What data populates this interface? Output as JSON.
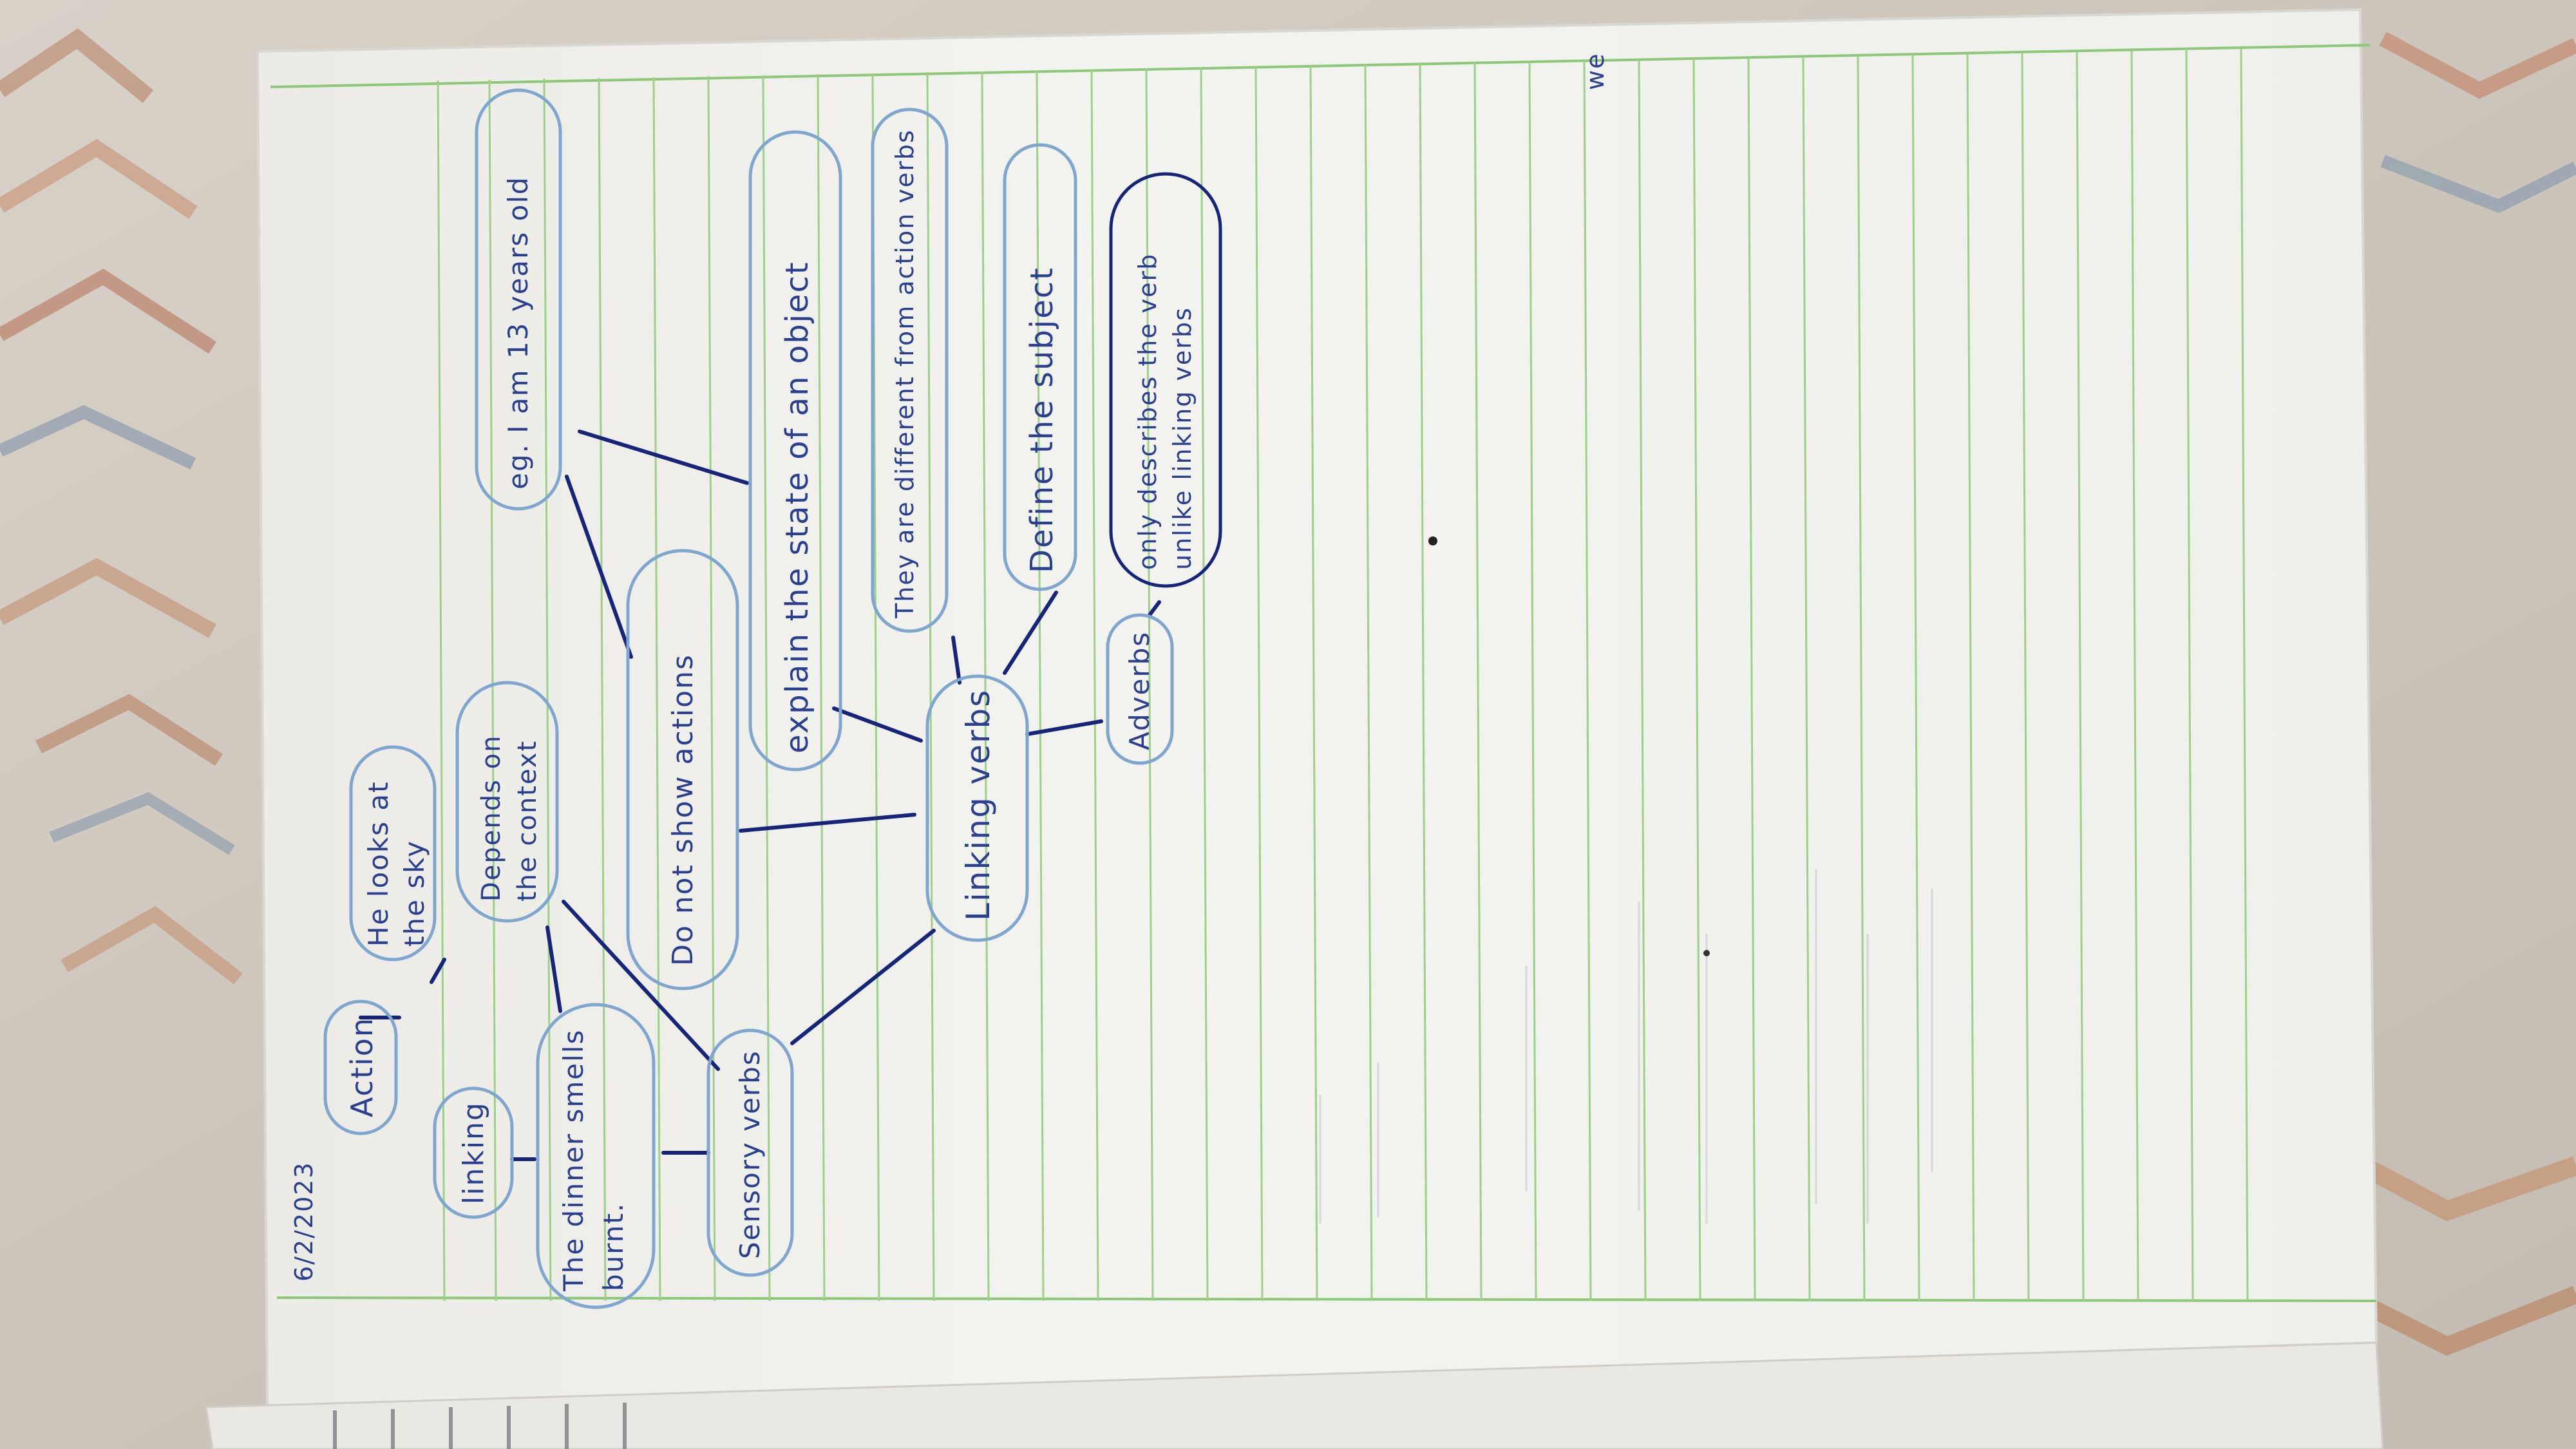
{
  "photo": {
    "description_visible_text": true
  },
  "notes": {
    "date": "6/2/2023",
    "corner_mark": "we",
    "nodes": {
      "linking_verbs": "Linking verbs",
      "sensory_verbs": "Sensory verbs",
      "action": "Action",
      "linking": "linking",
      "looks_example": "He looks at the sky",
      "smells_example": "The dinner smells burnt.",
      "depends_context": "Depends on the context",
      "no_actions": "Do not show actions",
      "explain_state": "explain the state of an object",
      "different_action": "They are different from action verbs",
      "define_subject": "Define the subject",
      "adverbs": "Adverbs",
      "adverbs_note": "only describes the verb unlike linking verbs",
      "am_example": "eg. I am 13 years old"
    }
  },
  "colors": {
    "ink": "#2a3f8f",
    "ink_dark": "#0b1a5c",
    "bubble": "#7fa6cf",
    "rule_green": "#8cc878",
    "paper": "#f4f4f0",
    "carpet": "#cfc9c0"
  }
}
